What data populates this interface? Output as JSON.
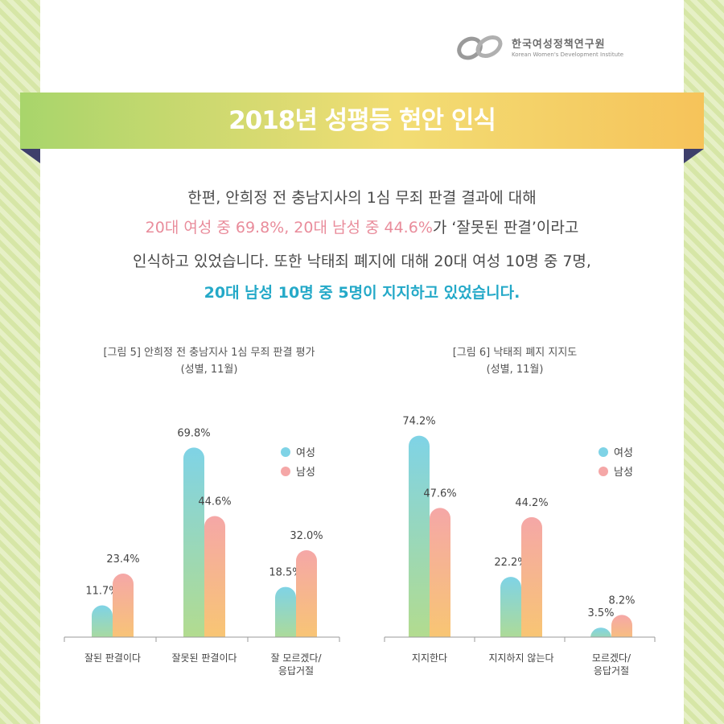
{
  "logo": {
    "org_name": "한국여성정책연구원",
    "org_name_en": "Korean Women's Development Institute"
  },
  "banner": {
    "title": "2018년 성평등 현안 인식"
  },
  "intro": {
    "line1": "한편, 안희정 전 충남지사의 1심 무죄 판결 결과에 대해",
    "line2_highlight": "20대 여성 중 69.8%, 20대 남성 중 44.6%",
    "line2_rest": "가 ‘잘못된 판결’이라고",
    "line3": "인식하고 있었습니다. 또한 낙태죄 폐지에 대해 20대 여성 10명 중 7명,",
    "line4_highlight": "20대 남성 10명 중 5명이 지지하고 있었습니다."
  },
  "colors": {
    "female_top": "#7fd3e6",
    "female_bottom": "#b5dc8a",
    "male_top": "#f5a7a7",
    "male_bottom": "#f8c86f"
  },
  "chart_data": [
    {
      "type": "bar",
      "title": "[그림 5] 안희정 전 충남지사 1심 무죄 판결 평가",
      "subtitle": "(성별, 11월)",
      "categories": [
        "잘된 판결이다",
        "잘못된 판결이다",
        "잘 모르겠다/\n응답거절"
      ],
      "series": [
        {
          "name": "여성",
          "values": [
            11.7,
            69.8,
            18.5
          ]
        },
        {
          "name": "남성",
          "values": [
            23.4,
            44.6,
            32.0
          ]
        }
      ],
      "ylim": [
        0,
        80
      ],
      "legend": "top-right"
    },
    {
      "type": "bar",
      "title": "[그림 6] 낙태죄 폐지 지지도",
      "subtitle": "(성별, 11월)",
      "categories": [
        "지지한다",
        "지지하지 않는다",
        "모르겠다/\n응답거절"
      ],
      "series": [
        {
          "name": "여성",
          "values": [
            74.2,
            22.2,
            3.5
          ]
        },
        {
          "name": "남성",
          "values": [
            47.6,
            44.2,
            8.2
          ]
        }
      ],
      "ylim": [
        0,
        80
      ],
      "legend": "top-right"
    }
  ]
}
